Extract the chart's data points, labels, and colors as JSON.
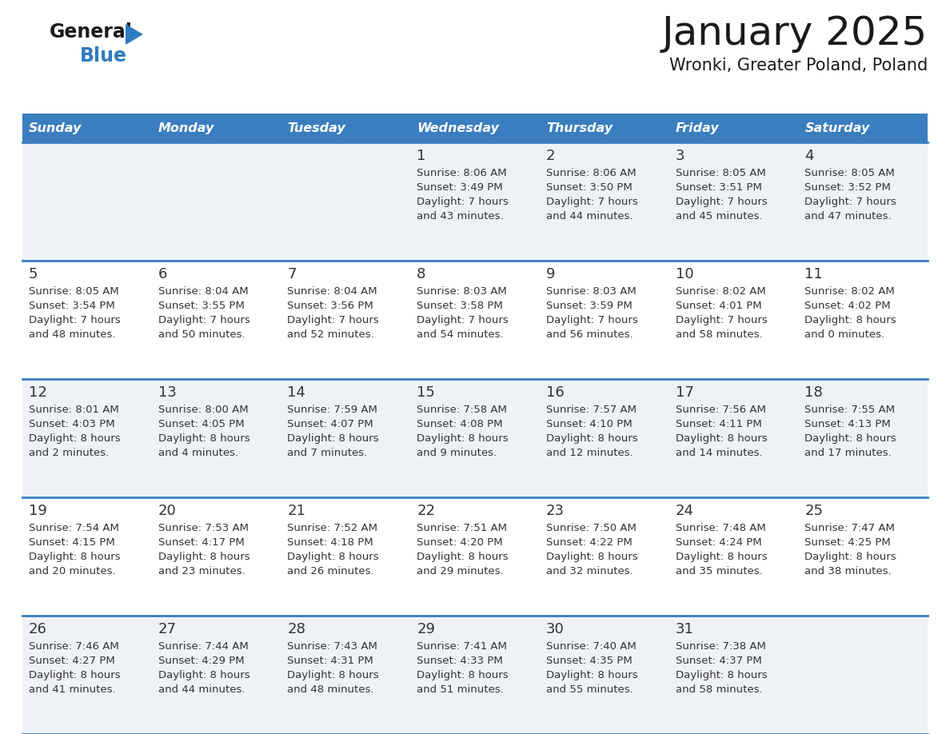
{
  "title": "January 2025",
  "subtitle": "Wronki, Greater Poland, Poland",
  "header_bg_color": "#3a7ebf",
  "header_text_color": "#ffffff",
  "row_bg_even": "#eef2f7",
  "row_bg_odd": "#ffffff",
  "separator_color": "#3a7ebf",
  "day_names": [
    "Sunday",
    "Monday",
    "Tuesday",
    "Wednesday",
    "Thursday",
    "Friday",
    "Saturday"
  ],
  "calendar_data": [
    [
      {
        "day": "",
        "sunrise": "",
        "sunset": "",
        "daylight_h": "",
        "daylight_m": ""
      },
      {
        "day": "",
        "sunrise": "",
        "sunset": "",
        "daylight_h": "",
        "daylight_m": ""
      },
      {
        "day": "",
        "sunrise": "",
        "sunset": "",
        "daylight_h": "",
        "daylight_m": ""
      },
      {
        "day": "1",
        "sunrise": "8:06 AM",
        "sunset": "3:49 PM",
        "daylight_h": "7 hours",
        "daylight_m": "and 43 minutes."
      },
      {
        "day": "2",
        "sunrise": "8:06 AM",
        "sunset": "3:50 PM",
        "daylight_h": "7 hours",
        "daylight_m": "and 44 minutes."
      },
      {
        "day": "3",
        "sunrise": "8:05 AM",
        "sunset": "3:51 PM",
        "daylight_h": "7 hours",
        "daylight_m": "and 45 minutes."
      },
      {
        "day": "4",
        "sunrise": "8:05 AM",
        "sunset": "3:52 PM",
        "daylight_h": "7 hours",
        "daylight_m": "and 47 minutes."
      }
    ],
    [
      {
        "day": "5",
        "sunrise": "8:05 AM",
        "sunset": "3:54 PM",
        "daylight_h": "7 hours",
        "daylight_m": "and 48 minutes."
      },
      {
        "day": "6",
        "sunrise": "8:04 AM",
        "sunset": "3:55 PM",
        "daylight_h": "7 hours",
        "daylight_m": "and 50 minutes."
      },
      {
        "day": "7",
        "sunrise": "8:04 AM",
        "sunset": "3:56 PM",
        "daylight_h": "7 hours",
        "daylight_m": "and 52 minutes."
      },
      {
        "day": "8",
        "sunrise": "8:03 AM",
        "sunset": "3:58 PM",
        "daylight_h": "7 hours",
        "daylight_m": "and 54 minutes."
      },
      {
        "day": "9",
        "sunrise": "8:03 AM",
        "sunset": "3:59 PM",
        "daylight_h": "7 hours",
        "daylight_m": "and 56 minutes."
      },
      {
        "day": "10",
        "sunrise": "8:02 AM",
        "sunset": "4:01 PM",
        "daylight_h": "7 hours",
        "daylight_m": "and 58 minutes."
      },
      {
        "day": "11",
        "sunrise": "8:02 AM",
        "sunset": "4:02 PM",
        "daylight_h": "8 hours",
        "daylight_m": "and 0 minutes."
      }
    ],
    [
      {
        "day": "12",
        "sunrise": "8:01 AM",
        "sunset": "4:03 PM",
        "daylight_h": "8 hours",
        "daylight_m": "and 2 minutes."
      },
      {
        "day": "13",
        "sunrise": "8:00 AM",
        "sunset": "4:05 PM",
        "daylight_h": "8 hours",
        "daylight_m": "and 4 minutes."
      },
      {
        "day": "14",
        "sunrise": "7:59 AM",
        "sunset": "4:07 PM",
        "daylight_h": "8 hours",
        "daylight_m": "and 7 minutes."
      },
      {
        "day": "15",
        "sunrise": "7:58 AM",
        "sunset": "4:08 PM",
        "daylight_h": "8 hours",
        "daylight_m": "and 9 minutes."
      },
      {
        "day": "16",
        "sunrise": "7:57 AM",
        "sunset": "4:10 PM",
        "daylight_h": "8 hours",
        "daylight_m": "and 12 minutes."
      },
      {
        "day": "17",
        "sunrise": "7:56 AM",
        "sunset": "4:11 PM",
        "daylight_h": "8 hours",
        "daylight_m": "and 14 minutes."
      },
      {
        "day": "18",
        "sunrise": "7:55 AM",
        "sunset": "4:13 PM",
        "daylight_h": "8 hours",
        "daylight_m": "and 17 minutes."
      }
    ],
    [
      {
        "day": "19",
        "sunrise": "7:54 AM",
        "sunset": "4:15 PM",
        "daylight_h": "8 hours",
        "daylight_m": "and 20 minutes."
      },
      {
        "day": "20",
        "sunrise": "7:53 AM",
        "sunset": "4:17 PM",
        "daylight_h": "8 hours",
        "daylight_m": "and 23 minutes."
      },
      {
        "day": "21",
        "sunrise": "7:52 AM",
        "sunset": "4:18 PM",
        "daylight_h": "8 hours",
        "daylight_m": "and 26 minutes."
      },
      {
        "day": "22",
        "sunrise": "7:51 AM",
        "sunset": "4:20 PM",
        "daylight_h": "8 hours",
        "daylight_m": "and 29 minutes."
      },
      {
        "day": "23",
        "sunrise": "7:50 AM",
        "sunset": "4:22 PM",
        "daylight_h": "8 hours",
        "daylight_m": "and 32 minutes."
      },
      {
        "day": "24",
        "sunrise": "7:48 AM",
        "sunset": "4:24 PM",
        "daylight_h": "8 hours",
        "daylight_m": "and 35 minutes."
      },
      {
        "day": "25",
        "sunrise": "7:47 AM",
        "sunset": "4:25 PM",
        "daylight_h": "8 hours",
        "daylight_m": "and 38 minutes."
      }
    ],
    [
      {
        "day": "26",
        "sunrise": "7:46 AM",
        "sunset": "4:27 PM",
        "daylight_h": "8 hours",
        "daylight_m": "and 41 minutes."
      },
      {
        "day": "27",
        "sunrise": "7:44 AM",
        "sunset": "4:29 PM",
        "daylight_h": "8 hours",
        "daylight_m": "and 44 minutes."
      },
      {
        "day": "28",
        "sunrise": "7:43 AM",
        "sunset": "4:31 PM",
        "daylight_h": "8 hours",
        "daylight_m": "and 48 minutes."
      },
      {
        "day": "29",
        "sunrise": "7:41 AM",
        "sunset": "4:33 PM",
        "daylight_h": "8 hours",
        "daylight_m": "and 51 minutes."
      },
      {
        "day": "30",
        "sunrise": "7:40 AM",
        "sunset": "4:35 PM",
        "daylight_h": "8 hours",
        "daylight_m": "and 55 minutes."
      },
      {
        "day": "31",
        "sunrise": "7:38 AM",
        "sunset": "4:37 PM",
        "daylight_h": "8 hours",
        "daylight_m": "and 58 minutes."
      },
      {
        "day": "",
        "sunrise": "",
        "sunset": "",
        "daylight_h": "",
        "daylight_m": ""
      }
    ]
  ],
  "logo_color_general": "#1a1a1a",
  "logo_color_blue": "#2e7bbf",
  "logo_triangle_color": "#2e7bbf",
  "title_color": "#1a1a1a",
  "subtitle_color": "#1a1a1a",
  "cell_text_color": "#333333",
  "day_number_color": "#333333",
  "title_fontsize": 36,
  "subtitle_fontsize": 15,
  "header_fontsize": 11.5,
  "day_num_fontsize": 12,
  "cell_text_fontsize": 9.5
}
